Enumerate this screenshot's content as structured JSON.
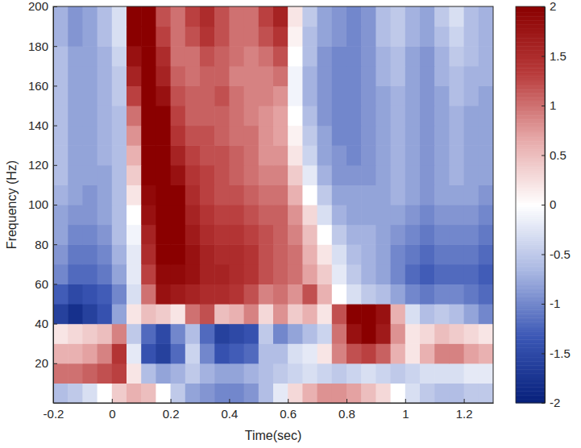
{
  "chart_data": {
    "type": "heatmap",
    "x_label": "Time(sec)",
    "y_label": "Frequency (Hz)",
    "x": [
      -0.175,
      -0.125,
      -0.075,
      -0.025,
      0.025,
      0.075,
      0.125,
      0.175,
      0.225,
      0.275,
      0.325,
      0.375,
      0.425,
      0.475,
      0.525,
      0.575,
      0.625,
      0.675,
      0.725,
      0.775,
      0.825,
      0.875,
      0.925,
      0.975,
      1.025,
      1.075,
      1.125,
      1.175,
      1.225,
      1.275
    ],
    "y": [
      5,
      15,
      25,
      35,
      45,
      55,
      65,
      75,
      85,
      95,
      105,
      115,
      125,
      135,
      145,
      155,
      165,
      175,
      185,
      195
    ],
    "values": [
      [
        -0.6,
        -0.5,
        -0.3,
        0,
        0.4,
        0.6,
        0.5,
        0,
        -0.5,
        -0.8,
        -0.9,
        -1,
        -1,
        -0.9,
        -0.6,
        -0.2,
        0.3,
        0.6,
        0.8,
        0.8,
        0.7,
        0.5,
        0.3,
        0,
        -0.3,
        -0.5,
        -0.6,
        -0.6,
        -0.5,
        -0.5
      ],
      [
        1,
        1,
        1.1,
        1.2,
        1.3,
        0.2,
        -0.6,
        -0.8,
        -0.7,
        -0.5,
        -0.7,
        -0.8,
        -0.8,
        -0.7,
        -0.6,
        -0.5,
        -0.4,
        -0.3,
        -0.4,
        -0.5,
        -0.4,
        -0.3,
        -0.4,
        -0.5,
        -0.4,
        -0.3,
        -0.3,
        -0.3,
        -0.2,
        -0.2
      ],
      [
        0.6,
        0.6,
        0.7,
        0.9,
        1.4,
        -0.2,
        -1.4,
        -1.6,
        -1.2,
        -0.4,
        -1,
        -1.4,
        -1.3,
        -1.2,
        -0.6,
        -0.6,
        -0.3,
        -0.2,
        0.2,
        0.9,
        1.2,
        1.3,
        1.1,
        0.6,
        0.2,
        0.6,
        0.9,
        0.9,
        0.7,
        0.6
      ],
      [
        0.2,
        0.3,
        0.4,
        0.5,
        0.9,
        -0.5,
        -1.2,
        -1.5,
        -1,
        -0.6,
        -1.2,
        -1.6,
        -1.5,
        -1.4,
        -0.5,
        -1,
        -0.8,
        -0.6,
        -0.4,
        1,
        1.8,
        2,
        1.7,
        0.8,
        0.2,
        0.3,
        0.5,
        0.4,
        0.3,
        0.2
      ],
      [
        -1.6,
        -1.8,
        -1.6,
        -1.4,
        -0.8,
        0.2,
        0.5,
        0.4,
        0.2,
        1,
        1.2,
        0.5,
        0.6,
        0.9,
        0.3,
        0.8,
        0.4,
        0.6,
        0.2,
        1.2,
        2,
        2,
        1.8,
        0.6,
        -0.3,
        -0.6,
        -0.5,
        -0.6,
        -0.8,
        -1
      ],
      [
        -1.3,
        -1.5,
        -1.4,
        -1.3,
        -1,
        -0.3,
        1,
        1.8,
        1.7,
        1.6,
        1.5,
        1.5,
        1.4,
        1.2,
        0.9,
        1,
        0.8,
        1.2,
        0.6,
        0,
        -0.3,
        -0.5,
        -0.6,
        -0.8,
        -1,
        -1.1,
        -1,
        -1,
        -1.1,
        -1.2
      ],
      [
        -1,
        -1.2,
        -1.2,
        -1.1,
        -0.8,
        -0.2,
        1.3,
        1.9,
        1.9,
        1.8,
        1.6,
        1.6,
        1.5,
        1.4,
        1.2,
        1.1,
        1,
        0.7,
        0.4,
        -0.2,
        -0.5,
        -0.7,
        -0.8,
        -1,
        -1.2,
        -1.3,
        -1.2,
        -1.2,
        -1.2,
        -1.3
      ],
      [
        -0.9,
        -1.1,
        -1.1,
        -1,
        -0.7,
        -0.2,
        1.5,
        2,
        2,
        1.8,
        1.6,
        1.5,
        1.5,
        1.4,
        1.2,
        1.1,
        1,
        0.6,
        0.2,
        -0.3,
        -0.6,
        -0.7,
        -0.8,
        -1,
        -1.1,
        -1.2,
        -1.1,
        -1.1,
        -1.1,
        -1.2
      ],
      [
        -0.8,
        -1,
        -1,
        -0.9,
        -0.6,
        -0.1,
        1.6,
        2,
        2,
        1.7,
        1.5,
        1.4,
        1.4,
        1.3,
        1.2,
        1.1,
        0.9,
        0.5,
        0,
        -0.5,
        -0.7,
        -0.7,
        -0.8,
        -0.9,
        -1,
        -1.1,
        -1,
        -1,
        -1,
        -1.1
      ],
      [
        -0.8,
        -0.9,
        -0.9,
        -0.8,
        -0.6,
        0,
        1.8,
        2,
        2,
        1.6,
        1.4,
        1.3,
        1.3,
        1.2,
        1.1,
        1.1,
        0.8,
        0.3,
        -0.3,
        -0.7,
        -0.8,
        -0.8,
        -0.8,
        -0.8,
        -0.9,
        -1,
        -0.9,
        -0.9,
        -0.9,
        -1
      ],
      [
        -0.7,
        -0.8,
        -0.9,
        -0.8,
        -0.6,
        0.2,
        1.9,
        2,
        2,
        1.5,
        1.3,
        1.2,
        1.2,
        1.1,
        1,
        1,
        0.6,
        0,
        -0.5,
        -0.8,
        -0.8,
        -0.8,
        -0.8,
        -0.7,
        -0.8,
        -0.9,
        -0.8,
        -0.8,
        -0.8,
        -0.9
      ],
      [
        -0.6,
        -0.8,
        -0.8,
        -0.8,
        -0.6,
        0.4,
        2,
        2,
        1.8,
        1.4,
        1.3,
        1.2,
        1.1,
        1,
        0.9,
        0.9,
        0.4,
        -0.2,
        -0.7,
        -0.9,
        -0.9,
        -0.9,
        -0.8,
        -0.7,
        -0.8,
        -0.9,
        -0.8,
        -0.7,
        -0.8,
        -0.8
      ],
      [
        -0.6,
        -0.8,
        -0.8,
        -0.7,
        -0.6,
        0.6,
        2,
        2,
        1.6,
        1.3,
        1.2,
        1.2,
        1.1,
        1,
        0.8,
        0.8,
        0.2,
        -0.4,
        -0.8,
        -0.9,
        -1,
        -0.9,
        -0.8,
        -0.7,
        -0.8,
        -0.9,
        -0.8,
        -0.7,
        -0.8,
        -0.8
      ],
      [
        -0.6,
        -0.8,
        -0.8,
        -0.7,
        -0.6,
        0.8,
        2,
        2,
        1.4,
        1.2,
        1.2,
        1.1,
        1,
        1,
        0.8,
        0.7,
        0.1,
        -0.5,
        -0.8,
        -1,
        -1,
        -0.9,
        -0.8,
        -0.7,
        -0.8,
        -0.9,
        -0.8,
        -0.7,
        -0.8,
        -0.8
      ],
      [
        -0.6,
        -0.8,
        -0.8,
        -0.7,
        -0.6,
        1,
        2,
        2,
        1.3,
        1.1,
        1.1,
        1.1,
        1,
        0.9,
        0.8,
        0.7,
        0,
        -0.6,
        -0.9,
        -1,
        -1,
        -0.9,
        -0.8,
        -0.7,
        -0.8,
        -0.9,
        -0.8,
        -0.7,
        -0.8,
        -0.8
      ],
      [
        -0.6,
        -0.8,
        -0.8,
        -0.7,
        -0.5,
        1.3,
        2,
        1.8,
        1.2,
        1.1,
        1.1,
        1.2,
        1,
        0.9,
        0.9,
        0.8,
        -0.1,
        -0.7,
        -0.9,
        -1,
        -1,
        -0.9,
        -0.8,
        -0.7,
        -0.8,
        -0.9,
        -0.8,
        -0.6,
        -0.7,
        -0.8
      ],
      [
        -0.6,
        -0.8,
        -0.8,
        -0.7,
        -0.5,
        1.6,
        2,
        1.6,
        1.1,
        1,
        1.1,
        1.1,
        0.9,
        0.9,
        0.9,
        1,
        -0.1,
        -0.7,
        -0.9,
        -1,
        -1,
        -0.9,
        -0.7,
        -0.6,
        -0.8,
        -0.9,
        -0.7,
        -0.6,
        -0.7,
        -0.7
      ],
      [
        -0.6,
        -0.8,
        -0.8,
        -0.7,
        -0.4,
        1.8,
        2,
        1.5,
        1,
        1,
        1.2,
        1.1,
        1,
        0.9,
        1,
        1.2,
        0,
        -0.6,
        -0.9,
        -1,
        -1,
        -0.9,
        -0.7,
        -0.6,
        -0.8,
        -0.9,
        -0.7,
        -0.5,
        -0.6,
        -0.7
      ],
      [
        -0.7,
        -0.9,
        -0.8,
        -0.6,
        -0.3,
        2,
        2,
        1.3,
        1,
        1.2,
        1.4,
        1.2,
        1,
        1,
        1.2,
        1.4,
        0.1,
        -0.6,
        -0.8,
        -0.9,
        -1,
        -0.9,
        -0.6,
        -0.5,
        -0.7,
        -0.8,
        -0.6,
        -0.4,
        -0.6,
        -0.7
      ],
      [
        -0.7,
        -0.9,
        -0.8,
        -0.6,
        -0.3,
        2,
        2,
        1.2,
        1,
        1.3,
        1.5,
        1.2,
        1,
        1,
        1.3,
        1.6,
        0.2,
        -0.5,
        -0.8,
        -0.9,
        -1,
        -0.9,
        -0.6,
        -0.5,
        -0.7,
        -0.8,
        -0.5,
        -0.3,
        -0.6,
        -0.7
      ]
    ],
    "xlim": [
      -0.2,
      1.3
    ],
    "ylim": [
      0,
      200
    ],
    "xticks": [
      -0.2,
      0,
      0.2,
      0.4,
      0.6,
      0.8,
      1,
      1.2
    ],
    "yticks": [
      20,
      40,
      60,
      80,
      100,
      120,
      140,
      160,
      180,
      200
    ],
    "colorbar": {
      "range": [
        -2,
        2
      ],
      "ticks": [
        -2,
        -1.5,
        -1,
        -0.5,
        0,
        0.5,
        1,
        1.5,
        2
      ]
    }
  }
}
